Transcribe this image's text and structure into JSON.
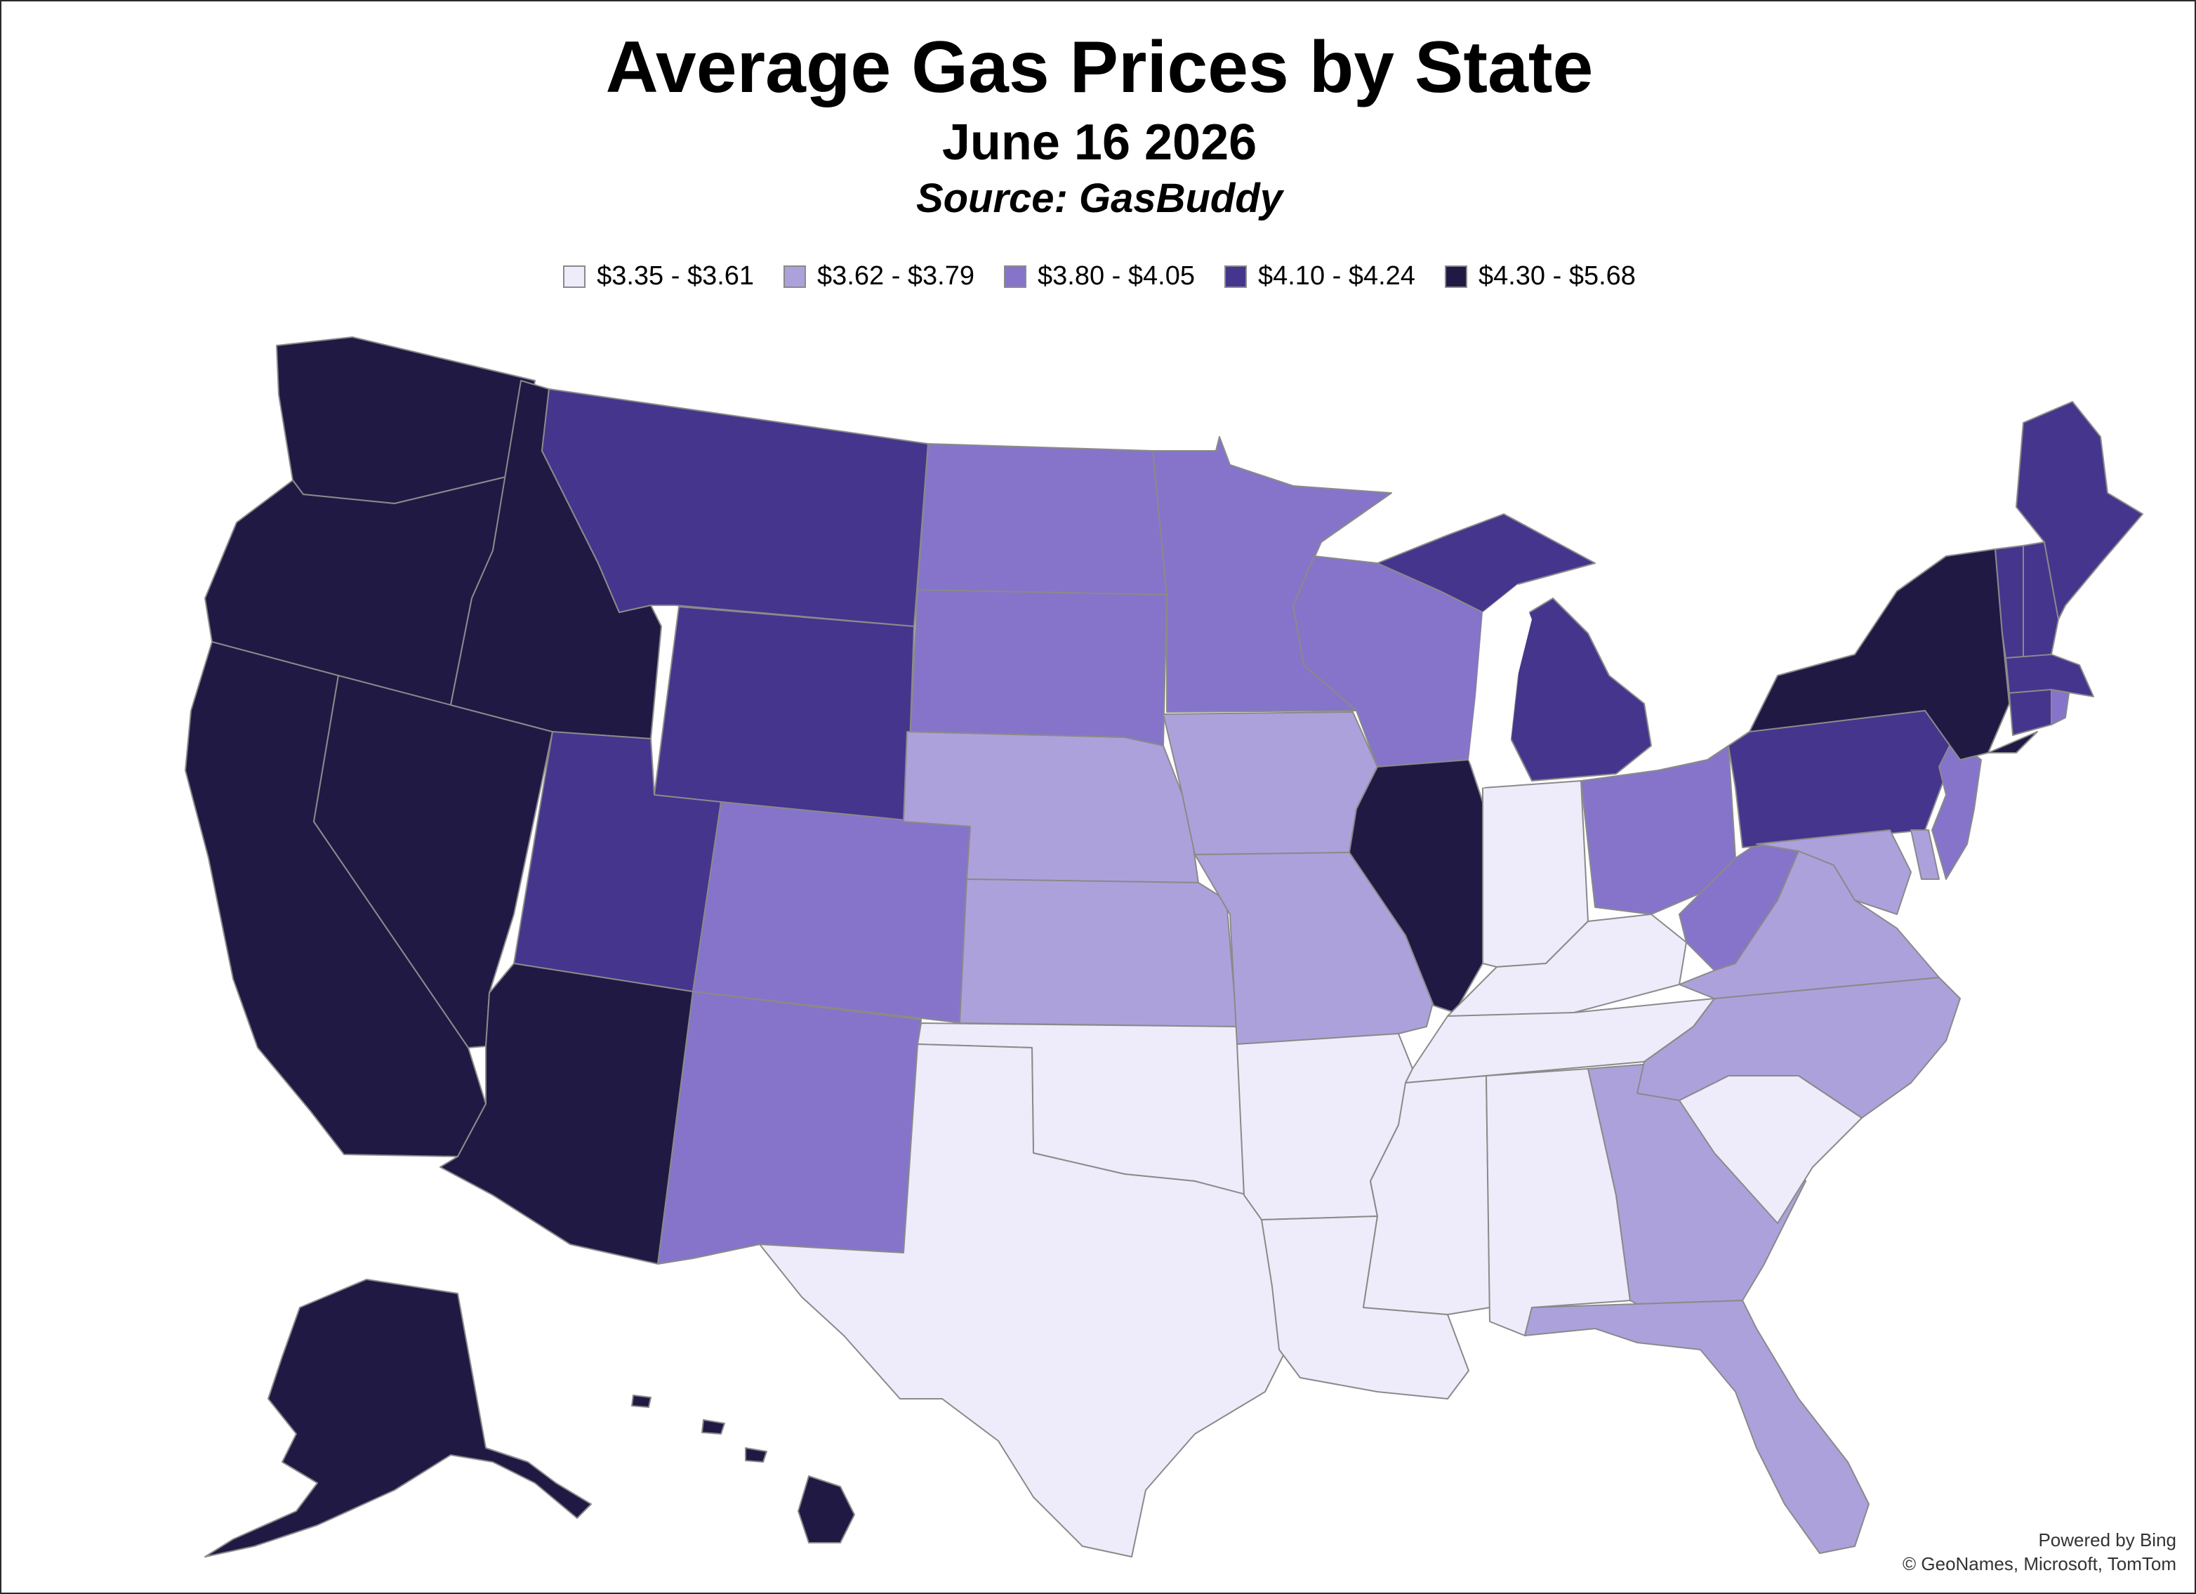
{
  "title": "Average Gas Prices by State",
  "subtitle": "June 16 2026",
  "source": "Source: GasBuddy",
  "colors": {
    "tier1": "#eeecfa",
    "tier2": "#ada1dc",
    "tier3": "#8574ca",
    "tier4": "#45358d",
    "tier5": "#201944"
  },
  "legend": [
    {
      "label": "$3.35 - $3.61",
      "color": "#eeecfa"
    },
    {
      "label": "$3.62 - $3.79",
      "color": "#ada1dc"
    },
    {
      "label": "$3.80 - $4.05",
      "color": "#8574ca"
    },
    {
      "label": "$4.10 - $4.24",
      "color": "#45358d"
    },
    {
      "label": "$4.30 - $5.68",
      "color": "#201944"
    }
  ],
  "states": {
    "WA": 5,
    "OR": 5,
    "CA": 5,
    "NV": 5,
    "ID": 5,
    "AZ": 5,
    "IL": 5,
    "NY": 5,
    "AK": 5,
    "HI": 5,
    "MT": 4,
    "WY": 4,
    "UT": 4,
    "MI": 4,
    "PA": 4,
    "ME": 4,
    "VT": 4,
    "NH": 4,
    "MA": 4,
    "CT": 4,
    "ND": 3,
    "SD": 3,
    "MN": 3,
    "WI": 3,
    "CO": 3,
    "NM": 3,
    "OH": 3,
    "WV": 3,
    "NJ": 3,
    "RI": 3,
    "NE": 2,
    "KS": 2,
    "IA": 2,
    "MO": 2,
    "VA": 2,
    "MD": 2,
    "DE": 2,
    "NC": 2,
    "GA": 2,
    "FL": 2,
    "OK": 1,
    "TX": 1,
    "AR": 1,
    "LA": 1,
    "MS": 1,
    "AL": 1,
    "TN": 1,
    "KY": 1,
    "IN": 1,
    "SC": 1
  },
  "credit": {
    "line1": "Powered by Bing",
    "line2": "© GeoNames, Microsoft, TomTom"
  }
}
